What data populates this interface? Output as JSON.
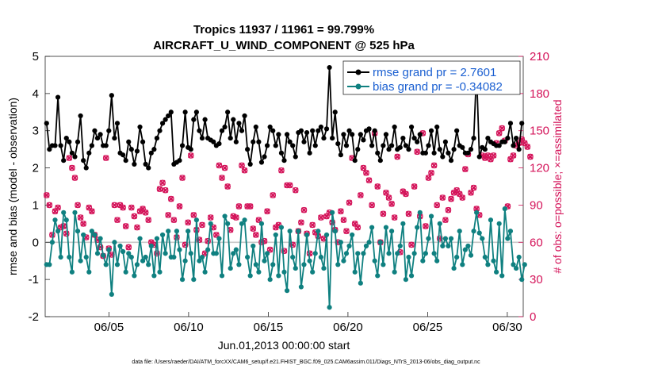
{
  "chart_data": {
    "type": "line",
    "title": "Tropics 11937 / 11961 = 99.799%",
    "subtitle": "AIRCRAFT_U_WIND_COMPONENT @ 525 hPa",
    "xlabel": "Jun.01,2013 00:00:00 start",
    "ylabel_left": "rmse and bias (model - observation)",
    "ylabel_right": "# of obs: o=possible; ×=assimilated",
    "ylim_left": [
      -2,
      5
    ],
    "yticks_left": [
      "-2",
      "-1",
      "0",
      "1",
      "2",
      "3",
      "4",
      "5"
    ],
    "ylim_right": [
      0,
      210
    ],
    "yticks_right": [
      "0",
      "30",
      "60",
      "90",
      "120",
      "150",
      "180",
      "210"
    ],
    "xlim": [
      1.0,
      31.0
    ],
    "xticks": [
      {
        "value": 5,
        "label": "06/05"
      },
      {
        "value": 10,
        "label": "06/10"
      },
      {
        "value": 15,
        "label": "06/15"
      },
      {
        "value": 20,
        "label": "06/20"
      },
      {
        "value": 25,
        "label": "06/25"
      },
      {
        "value": 30,
        "label": "06/30"
      }
    ],
    "footnote": "data file: /Users/raeder/DAI/ATM_forcXX/CAM6_setup/f.e21.FHIST_BGC.f09_025.CAM6assim.011/Diags_NTrS_2013-06/obs_diag_output.nc",
    "colors": {
      "rmse": "#000000",
      "bias": "#0f8080",
      "obs": "#d4145a",
      "zero_line": "#c8c8c8",
      "legend_text": "#1a5fd1"
    },
    "series": [
      {
        "name": "rmse grand pr = 2.7601",
        "axis": "left",
        "values": [
          3.2,
          2.5,
          2.6,
          2.6,
          3.9,
          2.6,
          2.2,
          2.8,
          2.7,
          2.4,
          2.3,
          2.7,
          3.4,
          2.2,
          2.0,
          2.4,
          2.6,
          3.0,
          2.8,
          2.9,
          2.6,
          2.6,
          3.0,
          3.95,
          2.8,
          3.2,
          2.4,
          2.35,
          2.2,
          2.7,
          2.5,
          2.1,
          2.45,
          3.1,
          2.7,
          2.1,
          2.0,
          2.4,
          2.5,
          2.8,
          3.0,
          3.2,
          3.3,
          3.4,
          3.5,
          2.1,
          2.15,
          2.2,
          2.6,
          3.5,
          2.55,
          2.5,
          3.3,
          3.5,
          3.0,
          2.8,
          3.3,
          2.8,
          2.75,
          2.7,
          2.6,
          2.65,
          3.0,
          3.1,
          3.5,
          2.8,
          3.3,
          2.7,
          3.2,
          3.0,
          3.4,
          2.5,
          2.1,
          2.7,
          3.1,
          2.7,
          2.15,
          2.3,
          2.6,
          3.1,
          3.0,
          2.6,
          2.9,
          2.4,
          2.2,
          2.9,
          2.7,
          2.6,
          2.3,
          2.95,
          3.0,
          2.7,
          2.95,
          2.4,
          3.0,
          2.6,
          3.0,
          3.1,
          2.8,
          3.05,
          4.7,
          2.8,
          3.5,
          2.65,
          2.35,
          2.9,
          2.6,
          3.0,
          2.9,
          2.2,
          2.5,
          2.9,
          2.75,
          3.0,
          3.05,
          2.6,
          3.0,
          2.4,
          2.2,
          2.6,
          2.9,
          2.5,
          2.6,
          3.1,
          2.5,
          2.55,
          2.8,
          2.6,
          2.5,
          3.1,
          2.8,
          2.7,
          2.9,
          2.4,
          2.4,
          2.6,
          3.0,
          2.4,
          3.1,
          2.5,
          2.3,
          2.7,
          2.4,
          2.2,
          2.5,
          3.0,
          2.6,
          2.55,
          2.4,
          2.4,
          2.5,
          2.8,
          4.6,
          2.3,
          2.55,
          2.5,
          2.8,
          2.7,
          2.65,
          2.6,
          2.6,
          2.7,
          2.7,
          2.8,
          3.2,
          2.6,
          2.8,
          2.5,
          3.2
        ]
      },
      {
        "name": "bias grand pr = -0.34082",
        "axis": "left",
        "values": [
          -0.6,
          -0.6,
          0.0,
          0.6,
          0.3,
          -0.4,
          0.8,
          0.6,
          -0.4,
          -0.8,
          0.8,
          0.3,
          -0.5,
          0.2,
          -0.4,
          -0.8,
          0.3,
          0.2,
          -0.3,
          0.1,
          -0.35,
          -0.6,
          -0.2,
          -1.4,
          0.0,
          -0.6,
          -0.1,
          -0.25,
          -0.8,
          -0.3,
          -0.4,
          -0.9,
          -0.6,
          0.1,
          -0.5,
          -0.4,
          -0.6,
          -0.1,
          -0.9,
          0.1,
          -0.8,
          0.2,
          -0.3,
          0.3,
          -0.4,
          -0.4,
          0.3,
          -0.2,
          -1.0,
          -0.5,
          0.3,
          -0.3,
          -1.0,
          0.6,
          -0.5,
          -0.4,
          -0.8,
          -0.2,
          0.5,
          -0.3,
          -0.3,
          0.1,
          -0.9,
          0.7,
          0.5,
          -0.7,
          -0.3,
          -0.2,
          -0.6,
          0.5,
          0.6,
          -0.4,
          -0.9,
          -0.1,
          -0.6,
          -0.8,
          0.5,
          -0.5,
          -0.3,
          -1.0,
          -0.6,
          0.2,
          -0.9,
          0.4,
          -0.8,
          -1.3,
          0.3,
          -0.4,
          -0.7,
          0.3,
          -1.2,
          -0.6,
          0.2,
          -0.5,
          -0.8,
          -0.3,
          0.3,
          -0.4,
          -0.7,
          0.2,
          -1.75,
          0.8,
          0.3,
          -0.6,
          0.0,
          -0.5,
          -0.3,
          -0.1,
          0.2,
          -0.8,
          -0.3,
          -1.1,
          -0.3,
          -0.1,
          0.0,
          0.4,
          -0.5,
          -0.9,
          0.0,
          -0.6,
          0.4,
          -0.3,
          0.3,
          -0.8,
          -0.3,
          -0.1,
          0.5,
          -1.0,
          -0.4,
          -0.9,
          -0.3,
          0.4,
          0.8,
          -0.5,
          -0.3,
          0.1,
          0.7,
          -0.3,
          -0.5,
          0.5,
          -0.1,
          0.1,
          -0.1,
          0.1,
          -0.7,
          -0.4,
          0.3,
          -0.6,
          -0.2,
          -0.1,
          -0.35,
          0.3,
          0.8,
          0.25,
          0.1,
          -0.4,
          -0.6,
          0.6,
          -0.5,
          -0.8,
          0.5,
          -0.9,
          0.9,
          0.1,
          0.3,
          -0.6,
          -0.7,
          -0.4,
          -1.0,
          -0.6
        ]
      },
      {
        "name": "# of obs",
        "axis": "right",
        "values": [
          98,
          90,
          66,
          85,
          88,
          72,
          73,
          67,
          128,
          120,
          112,
          90,
          80,
          75,
          64,
          88,
          85,
          66,
          62,
          56,
          49,
          128,
          55,
          50,
          90,
          78,
          90,
          88,
          73,
          56,
          88,
          81,
          72,
          85,
          87,
          84,
          78,
          60,
          58,
          51,
          103,
          108,
          102,
          82,
          95,
          78,
          64,
          89,
          112,
          58,
          76,
          130,
          82,
          70,
          62,
          74,
          51,
          61,
          80,
          72,
          66,
          122,
          112,
          120,
          105,
          70,
          81,
          80,
          89,
          122,
          118,
          89,
          89,
          71,
          66,
          78,
          60,
          61,
          85,
          54,
          98,
          72,
          74,
          118,
          53,
          106,
          106,
          58,
          102,
          69,
          76,
          86,
          67,
          51,
          74,
          68,
          65,
          80,
          63,
          81,
          84,
          76,
          70,
          60,
          85,
          78,
          69,
          92,
          128,
          75,
          72,
          98,
          120,
          116,
          110,
          90,
          148,
          105,
          60,
          83,
          100,
          96,
          91,
          80,
          129,
          52,
          101,
          99,
          83,
          58,
          105,
          133,
          81,
          148,
          73,
          112,
          116,
          122,
          90,
          63,
          96,
          78,
          86,
          95,
          100,
          102,
          99,
          96,
          119,
          131,
          100,
          104,
          87,
          82,
          130,
          128,
          130,
          127,
          130,
          140,
          148,
          152,
          142,
          89,
          127,
          130,
          138,
          140,
          143,
          140,
          137,
          129
        ]
      }
    ]
  }
}
